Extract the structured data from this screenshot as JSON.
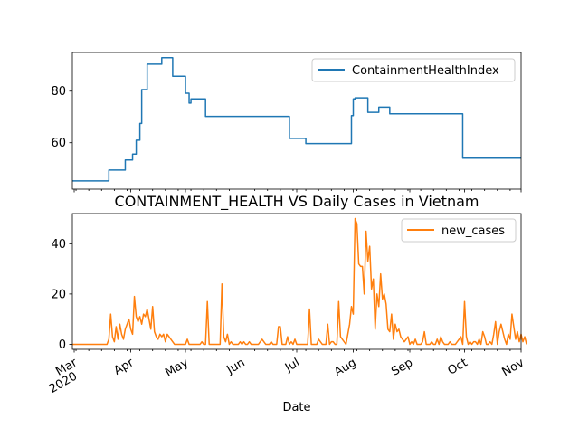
{
  "chart_data": [
    {
      "type": "line",
      "title": "",
      "xlabel": "",
      "ylabel": "",
      "xlim": [
        "2020-02-29",
        "2020-11-01"
      ],
      "ylim": [
        42,
        95
      ],
      "yticks": [
        60,
        80
      ],
      "show_xtick_labels": false,
      "grid": false,
      "legend": "top-right",
      "series": [
        {
          "name": "ContainmentHealthIndex",
          "color": "#1f77b4",
          "step": true,
          "points": [
            [
              "2020-02-29",
              45.2
            ],
            [
              "2020-03-20",
              49.4
            ],
            [
              "2020-03-29",
              53.3
            ],
            [
              "2020-04-02",
              55.6
            ],
            [
              "2020-04-04",
              61.0
            ],
            [
              "2020-04-06",
              67.5
            ],
            [
              "2020-04-07",
              80.6
            ],
            [
              "2020-04-10",
              90.5
            ],
            [
              "2020-04-18",
              93.0
            ],
            [
              "2020-04-24",
              85.8
            ],
            [
              "2020-05-01",
              79.2
            ],
            [
              "2020-05-03",
              75.4
            ],
            [
              "2020-05-04",
              77.0
            ],
            [
              "2020-05-12",
              70.2
            ],
            [
              "2020-06-27",
              61.7
            ],
            [
              "2020-07-06",
              59.7
            ],
            [
              "2020-07-31",
              70.5
            ],
            [
              "2020-08-01",
              77.0
            ],
            [
              "2020-08-02",
              77.4
            ],
            [
              "2020-08-09",
              71.8
            ],
            [
              "2020-08-15",
              73.8
            ],
            [
              "2020-08-21",
              71.2
            ],
            [
              "2020-09-30",
              54.0
            ],
            [
              "2020-11-01",
              54.0
            ]
          ]
        }
      ]
    },
    {
      "type": "line",
      "title": "CONTAINMENT_HEALTH VS Daily Cases in Vietnam",
      "xlabel": "Date",
      "ylabel": "",
      "xlim": [
        "2020-02-29",
        "2020-11-01"
      ],
      "ylim": [
        -2,
        52
      ],
      "yticks": [
        0,
        20,
        40
      ],
      "xticks": [
        {
          "date": "2020-03-01",
          "label": "Mar",
          "sublabel": "2020"
        },
        {
          "date": "2020-04-01",
          "label": "Apr"
        },
        {
          "date": "2020-05-01",
          "label": "May"
        },
        {
          "date": "2020-06-01",
          "label": "Jun"
        },
        {
          "date": "2020-07-01",
          "label": "Jul"
        },
        {
          "date": "2020-08-01",
          "label": "Aug"
        },
        {
          "date": "2020-09-01",
          "label": "Sep"
        },
        {
          "date": "2020-10-01",
          "label": "Oct"
        },
        {
          "date": "2020-11-01",
          "label": "Nov"
        }
      ],
      "grid": false,
      "legend": "top-right",
      "series": [
        {
          "name": "new_cases",
          "color": "#ff7f0e",
          "start": "2020-02-29",
          "values": [
            0,
            0,
            0,
            0,
            0,
            0,
            0,
            0,
            0,
            0,
            0,
            0,
            0,
            0,
            0,
            0,
            0,
            0,
            0,
            0,
            2,
            12,
            3,
            1,
            7,
            2,
            8,
            4,
            2,
            6,
            8,
            10,
            6,
            4,
            19,
            11,
            9,
            11,
            8,
            12,
            11,
            14,
            10,
            6,
            15,
            5,
            3,
            2,
            4,
            3,
            4,
            1,
            4,
            3,
            2,
            1,
            0,
            0,
            0,
            0,
            0,
            0,
            0,
            2,
            0,
            0,
            0,
            0,
            0,
            0,
            0,
            1,
            0,
            0,
            17,
            0,
            0,
            0,
            0,
            0,
            0,
            0,
            24,
            3,
            1,
            4,
            0,
            1,
            0,
            0,
            0,
            0,
            1,
            0,
            1,
            0,
            0,
            1,
            0,
            0,
            0,
            0,
            0,
            1,
            2,
            1,
            0,
            0,
            0,
            1,
            0,
            0,
            0,
            7,
            7,
            0,
            0,
            0,
            3,
            0,
            1,
            0,
            2,
            0,
            0,
            0,
            0,
            0,
            0,
            0,
            14,
            0,
            0,
            0,
            0,
            2,
            1,
            0,
            0,
            0,
            8,
            0,
            1,
            1,
            0,
            0,
            17,
            3,
            2,
            1,
            0,
            4,
            8,
            15,
            12,
            50,
            48,
            32,
            31,
            31,
            20,
            45,
            33,
            39,
            22,
            26,
            6,
            20,
            15,
            28,
            18,
            20,
            16,
            6,
            5,
            12,
            2,
            8,
            5,
            6,
            3,
            2,
            1,
            2,
            3,
            0,
            1,
            0,
            2,
            0,
            0,
            0,
            1,
            5,
            0,
            0,
            0,
            1,
            0,
            0,
            2,
            0,
            3,
            1,
            0,
            0,
            0,
            1,
            0,
            0,
            0,
            1,
            2,
            3,
            0,
            17,
            3,
            0,
            1,
            0,
            1,
            1,
            0,
            2,
            0,
            5,
            3,
            0,
            0,
            1,
            0,
            4,
            9,
            0,
            5,
            8,
            5,
            2,
            0,
            4,
            2,
            12,
            7,
            2,
            5,
            1,
            4,
            1,
            3,
            0
          ]
        }
      ]
    }
  ]
}
